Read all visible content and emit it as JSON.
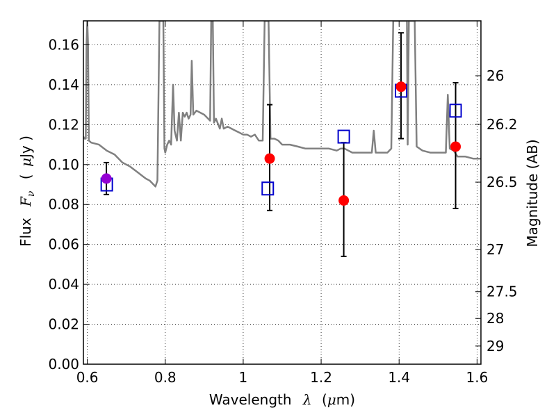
{
  "chart_data": {
    "type": "scatter",
    "xlabel_prefix": "Wavelength",
    "xlabel_symbol": "λ",
    "xlabel_unit_open": "(",
    "xlabel_unit_mu": "μ",
    "xlabel_unit_rest": "m)",
    "ylabel_prefix": "Flux",
    "ylabel_symbol": "F",
    "ylabel_subscript": "ν",
    "ylabel_unit_open": "(",
    "ylabel_unit_mu": "μ",
    "ylabel_unit_rest": "Jy )",
    "y2label": "Magnitude (AB)",
    "xlim": [
      0.59,
      1.61
    ],
    "ylim": [
      0.0,
      0.172
    ],
    "x_ticks": [
      0.6,
      0.8,
      1.0,
      1.2,
      1.4,
      1.6
    ],
    "x_tick_labels": [
      "0.6",
      "0.8",
      "1",
      "1.2",
      "1.4",
      "1.6"
    ],
    "y_ticks": [
      0.0,
      0.02,
      0.04,
      0.06,
      0.08,
      0.1,
      0.12,
      0.14,
      0.16
    ],
    "y_tick_labels": [
      "0.00",
      "0.02",
      "0.04",
      "0.06",
      "0.08",
      "0.10",
      "0.12",
      "0.14",
      "0.16"
    ],
    "y2_tick_labels": [
      "26",
      "26.2",
      "26.5",
      "27",
      "27.5",
      "28",
      "29"
    ],
    "y2_tick_values_flux": [
      0.1445,
      0.1202,
      0.0912,
      0.0575,
      0.0363,
      0.0229,
      0.0091
    ],
    "grid": true,
    "colors": {
      "model": "#808080",
      "observed": "#ff0000",
      "observed_optical": "#9400d3",
      "model_box": "#0000cc",
      "errorbar": "#000000"
    },
    "series": [
      {
        "type": "line",
        "points": [
          [
            0.59,
            0.114
          ],
          [
            0.593,
            0.113
          ],
          [
            0.596,
            0.113
          ],
          [
            0.598,
            0.16
          ],
          [
            0.6,
            0.172
          ],
          [
            0.602,
            0.16
          ],
          [
            0.604,
            0.112
          ],
          [
            0.61,
            0.111
          ],
          [
            0.63,
            0.11
          ],
          [
            0.65,
            0.107
          ],
          [
            0.67,
            0.105
          ],
          [
            0.69,
            0.101
          ],
          [
            0.71,
            0.099
          ],
          [
            0.73,
            0.096
          ],
          [
            0.75,
            0.093
          ],
          [
            0.76,
            0.092
          ],
          [
            0.77,
            0.09
          ],
          [
            0.775,
            0.089
          ],
          [
            0.78,
            0.092
          ],
          [
            0.785,
            0.172
          ],
          [
            0.795,
            0.172
          ],
          [
            0.798,
            0.108
          ],
          [
            0.8,
            0.106
          ],
          [
            0.805,
            0.11
          ],
          [
            0.81,
            0.112
          ],
          [
            0.815,
            0.11
          ],
          [
            0.82,
            0.14
          ],
          [
            0.824,
            0.117
          ],
          [
            0.83,
            0.112
          ],
          [
            0.835,
            0.126
          ],
          [
            0.84,
            0.112
          ],
          [
            0.845,
            0.126
          ],
          [
            0.85,
            0.124
          ],
          [
            0.855,
            0.126
          ],
          [
            0.86,
            0.123
          ],
          [
            0.865,
            0.125
          ],
          [
            0.868,
            0.152
          ],
          [
            0.872,
            0.125
          ],
          [
            0.88,
            0.127
          ],
          [
            0.89,
            0.126
          ],
          [
            0.9,
            0.125
          ],
          [
            0.91,
            0.123
          ],
          [
            0.915,
            0.122
          ],
          [
            0.918,
            0.172
          ],
          [
            0.922,
            0.172
          ],
          [
            0.925,
            0.121
          ],
          [
            0.93,
            0.123
          ],
          [
            0.94,
            0.118
          ],
          [
            0.945,
            0.123
          ],
          [
            0.95,
            0.118
          ],
          [
            0.96,
            0.119
          ],
          [
            0.97,
            0.118
          ],
          [
            0.98,
            0.117
          ],
          [
            0.99,
            0.116
          ],
          [
            1.0,
            0.115
          ],
          [
            1.01,
            0.115
          ],
          [
            1.02,
            0.114
          ],
          [
            1.03,
            0.115
          ],
          [
            1.04,
            0.112
          ],
          [
            1.05,
            0.112
          ],
          [
            1.055,
            0.172
          ],
          [
            1.065,
            0.172
          ],
          [
            1.07,
            0.113
          ],
          [
            1.08,
            0.113
          ],
          [
            1.09,
            0.112
          ],
          [
            1.1,
            0.11
          ],
          [
            1.12,
            0.11
          ],
          [
            1.14,
            0.109
          ],
          [
            1.16,
            0.108
          ],
          [
            1.18,
            0.108
          ],
          [
            1.2,
            0.108
          ],
          [
            1.22,
            0.108
          ],
          [
            1.24,
            0.107
          ],
          [
            1.25,
            0.108
          ],
          [
            1.26,
            0.108
          ],
          [
            1.28,
            0.106
          ],
          [
            1.3,
            0.106
          ],
          [
            1.32,
            0.106
          ],
          [
            1.33,
            0.106
          ],
          [
            1.335,
            0.117
          ],
          [
            1.34,
            0.106
          ],
          [
            1.36,
            0.106
          ],
          [
            1.37,
            0.106
          ],
          [
            1.38,
            0.108
          ],
          [
            1.385,
            0.172
          ],
          [
            1.42,
            0.172
          ],
          [
            1.422,
            0.11
          ],
          [
            1.425,
            0.172
          ],
          [
            1.44,
            0.172
          ],
          [
            1.445,
            0.109
          ],
          [
            1.46,
            0.107
          ],
          [
            1.48,
            0.106
          ],
          [
            1.5,
            0.106
          ],
          [
            1.51,
            0.106
          ],
          [
            1.52,
            0.106
          ],
          [
            1.525,
            0.135
          ],
          [
            1.53,
            0.108
          ],
          [
            1.54,
            0.107
          ],
          [
            1.55,
            0.104
          ],
          [
            1.57,
            0.104
          ],
          [
            1.59,
            0.103
          ],
          [
            1.61,
            0.103
          ]
        ]
      },
      {
        "type": "errorbar",
        "points": [
          {
            "x": 0.649,
            "y": 0.093,
            "ylo": 0.085,
            "yhi": 0.101,
            "color": "observed_optical"
          },
          {
            "x": 1.068,
            "y": 0.103,
            "ylo": 0.077,
            "yhi": 0.13,
            "color": "observed"
          },
          {
            "x": 1.258,
            "y": 0.082,
            "ylo": 0.054,
            "yhi": 0.111,
            "color": "observed"
          },
          {
            "x": 1.405,
            "y": 0.139,
            "ylo": 0.113,
            "yhi": 0.166,
            "color": "observed"
          },
          {
            "x": 1.545,
            "y": 0.109,
            "ylo": 0.078,
            "yhi": 0.141,
            "color": "observed"
          }
        ]
      },
      {
        "type": "squares",
        "points": [
          {
            "x": 0.65,
            "y": 0.09
          },
          {
            "x": 1.063,
            "y": 0.088
          },
          {
            "x": 1.258,
            "y": 0.114
          },
          {
            "x": 1.405,
            "y": 0.137
          },
          {
            "x": 1.545,
            "y": 0.127
          }
        ]
      }
    ]
  }
}
